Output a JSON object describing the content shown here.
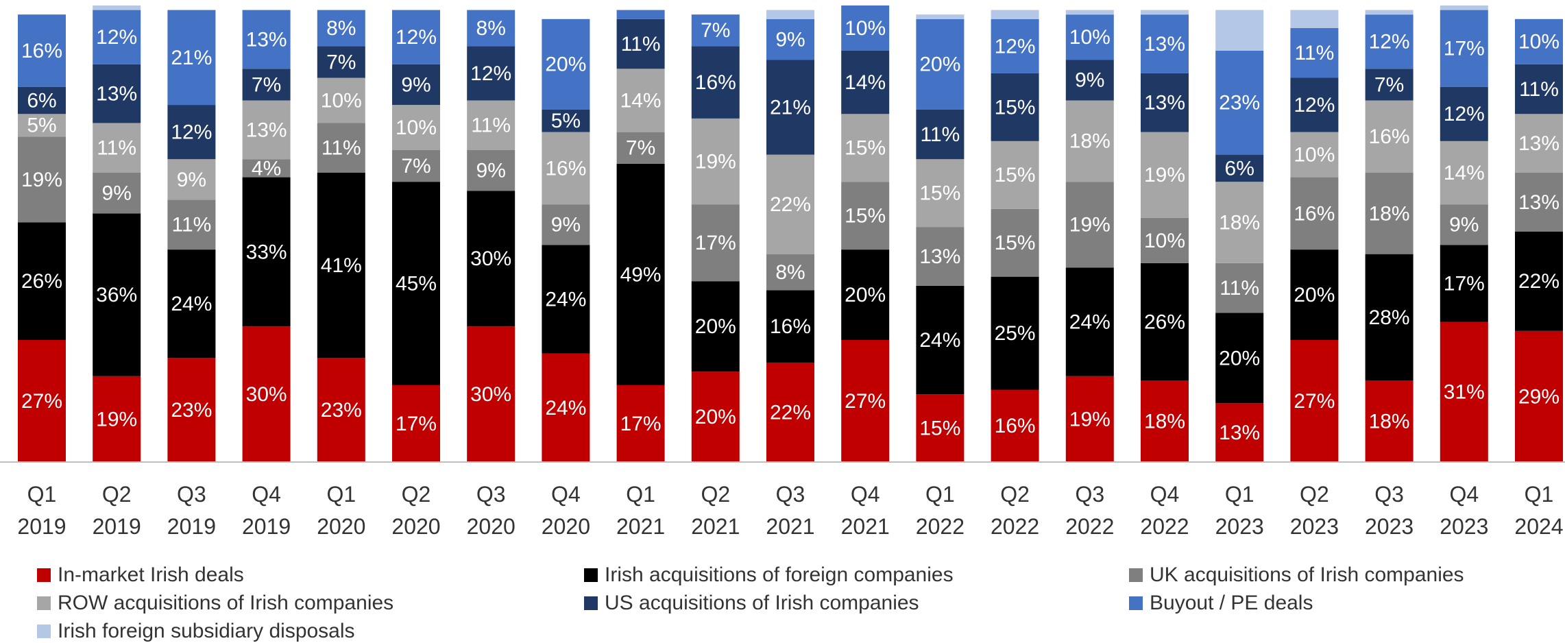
{
  "chart_data": {
    "type": "stacked_bar",
    "categories": [
      "Q1 2019",
      "Q2 2019",
      "Q3 2019",
      "Q4 2019",
      "Q1 2020",
      "Q2 2020",
      "Q3 2020",
      "Q4 2020",
      "Q1 2021",
      "Q2 2021",
      "Q3 2021",
      "Q4 2021",
      "Q1 2022",
      "Q2 2022",
      "Q3 2022",
      "Q4 2022",
      "Q1 2023",
      "Q2 2023",
      "Q3 2023",
      "Q4 2023",
      "Q1 2024"
    ],
    "ylim": [
      0,
      100
    ],
    "series": [
      {
        "name": "In-market Irish deals",
        "color": "#c00000",
        "values": [
          27,
          19,
          23,
          30,
          23,
          17,
          30,
          24,
          17,
          20,
          22,
          27,
          15,
          16,
          19,
          18,
          13,
          27,
          18,
          31,
          29
        ],
        "value_labels": [
          "27%",
          "19%",
          "23%",
          "30%",
          "23%",
          "17%",
          "30%",
          "24%",
          "17%",
          "20%",
          "22%",
          "27%",
          "15%",
          "16%",
          "19%",
          "18%",
          "13%",
          "27%",
          "18%",
          "31%",
          "29%"
        ]
      },
      {
        "name": "Irish acquisitions of foreign companies",
        "color": "#000000",
        "values": [
          26,
          36,
          24,
          33,
          41,
          45,
          30,
          24,
          49,
          20,
          16,
          20,
          24,
          25,
          24,
          26,
          20,
          20,
          28,
          17,
          22
        ],
        "value_labels": [
          "26%",
          "36%",
          "24%",
          "33%",
          "41%",
          "45%",
          "30%",
          "24%",
          "49%",
          "20%",
          "16%",
          "20%",
          "24%",
          "25%",
          "24%",
          "26%",
          "20%",
          "20%",
          "28%",
          "17%",
          "22%"
        ]
      },
      {
        "name": "UK acquisitions of Irish companies",
        "color": "#7f7f7f",
        "values": [
          19,
          9,
          11,
          4,
          11,
          7,
          9,
          9,
          7,
          17,
          8,
          15,
          13,
          15,
          19,
          10,
          11,
          16,
          18,
          9,
          13
        ],
        "value_labels": [
          "19%",
          "9%",
          "11%",
          "4%",
          "11%",
          "7%",
          "9%",
          "9%",
          "7%",
          "17%",
          "8%",
          "15%",
          "13%",
          "15%",
          "19%",
          "10%",
          "11%",
          "16%",
          "18%",
          "9%",
          "13%"
        ]
      },
      {
        "name": "ROW acquisitions of Irish companies",
        "color": "#a6a6a6",
        "values": [
          5,
          11,
          9,
          13,
          10,
          10,
          11,
          16,
          14,
          19,
          22,
          15,
          15,
          15,
          18,
          19,
          18,
          10,
          16,
          14,
          13
        ],
        "value_labels": [
          "5%",
          "11%",
          "9%",
          "13%",
          "10%",
          "10%",
          "11%",
          "16%",
          "14%",
          "19%",
          "22%",
          "15%",
          "15%",
          "15%",
          "18%",
          "19%",
          "18%",
          "10%",
          "16%",
          "14%",
          "13%"
        ]
      },
      {
        "name": "US acquisitions of Irish companies",
        "color": "#1f3864",
        "values": [
          6,
          13,
          12,
          7,
          7,
          9,
          12,
          5,
          11,
          16,
          21,
          14,
          11,
          15,
          9,
          13,
          6,
          12,
          7,
          12,
          11
        ],
        "value_labels": [
          "6%",
          "13%",
          "12%",
          "7%",
          "7%",
          "9%",
          "12%",
          "5%",
          "11%",
          "16%",
          "21%",
          "14%",
          "11%",
          "15%",
          "9%",
          "13%",
          "6%",
          "12%",
          "7%",
          "12%",
          "11%"
        ]
      },
      {
        "name": "Buyout / PE deals",
        "color": "#4472c4",
        "values": [
          16,
          12,
          21,
          13,
          8,
          12,
          8,
          20,
          2,
          7,
          9,
          10,
          20,
          12,
          10,
          13,
          23,
          11,
          12,
          17,
          10
        ],
        "value_labels": [
          "16%",
          "12%",
          "21%",
          "13%",
          "8%",
          "12%",
          "8%",
          "20%",
          null,
          "7%",
          "9%",
          "10%",
          "20%",
          "12%",
          "10%",
          "13%",
          "23%",
          "11%",
          "12%",
          "17%",
          "10%"
        ]
      },
      {
        "name": "Irish foreign subsidiary disposals",
        "color": "#b4c7e7",
        "values": [
          0,
          1,
          0,
          0,
          0,
          0,
          0,
          0,
          0,
          0,
          2,
          0,
          1,
          2,
          1,
          1,
          9,
          4,
          1,
          1,
          0
        ]
      }
    ]
  }
}
